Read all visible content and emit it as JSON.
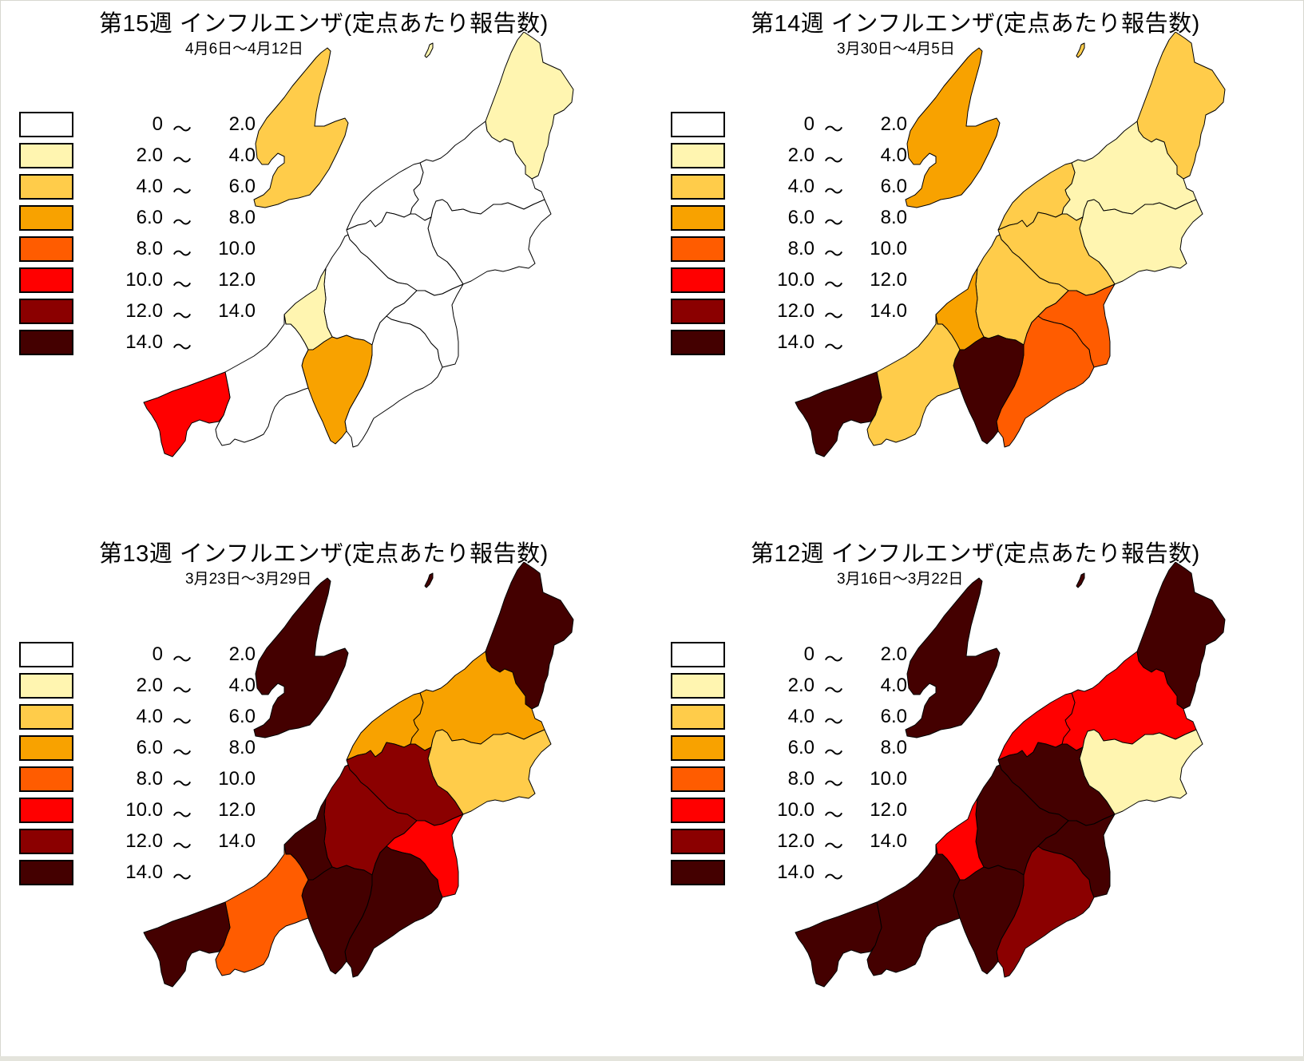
{
  "chart_data": [
    {
      "type": "choropleth-map",
      "title": "第15週 インフルエンザ(定点あたり報告数)",
      "subtitle": "4月6日～4月12日",
      "regions": {
        "sado": 4,
        "awashima": 2,
        "murakami": 2,
        "shibata": 0,
        "niigata": 0,
        "agano": 0,
        "sanjo": 0,
        "nagaoka": 0,
        "kashiwazaki": 2,
        "uonuma": 0,
        "minamiuonuma": 0,
        "tokamachi": 6,
        "joetsu": 0,
        "itoigawa": 10
      }
    },
    {
      "type": "choropleth-map",
      "title": "第14週 インフルエンザ(定点あたり報告数)",
      "subtitle": "3月30日～4月5日",
      "regions": {
        "sado": 6,
        "awashima": 4,
        "murakami": 4,
        "shibata": 2,
        "niigata": 4,
        "agano": 2,
        "sanjo": 4,
        "nagaoka": 4,
        "kashiwazaki": 6,
        "uonuma": 8,
        "minamiuonuma": 8,
        "tokamachi": 14,
        "joetsu": 4,
        "itoigawa": 14
      }
    },
    {
      "type": "choropleth-map",
      "title": "第13週 インフルエンザ(定点あたり報告数)",
      "subtitle": "3月23日～3月29日",
      "regions": {
        "sado": 14,
        "awashima": 14,
        "murakami": 14,
        "shibata": 6,
        "niigata": 6,
        "agano": 4,
        "sanjo": 12,
        "nagaoka": 12,
        "kashiwazaki": 14,
        "uonuma": 10,
        "minamiuonuma": 14,
        "tokamachi": 14,
        "joetsu": 8,
        "itoigawa": 14
      }
    },
    {
      "type": "choropleth-map",
      "title": "第12週 インフルエンザ(定点あたり報告数)",
      "subtitle": "3月16日～3月22日",
      "regions": {
        "sado": 14,
        "awashima": 14,
        "murakami": 14,
        "shibata": 10,
        "niigata": 10,
        "agano": 2,
        "sanjo": 14,
        "nagaoka": 14,
        "kashiwazaki": 10,
        "uonuma": 14,
        "minamiuonuma": 12,
        "tokamachi": 14,
        "joetsu": 14,
        "itoigawa": 14
      }
    }
  ],
  "legend": [
    {
      "lo": "0",
      "tilde": "～",
      "hi": "2.0",
      "color": "#ffffff",
      "min": 0
    },
    {
      "lo": "2.0",
      "tilde": "～",
      "hi": "4.0",
      "color": "#fff5b0",
      "min": 2
    },
    {
      "lo": "4.0",
      "tilde": "～",
      "hi": "6.0",
      "color": "#ffcc4a",
      "min": 4
    },
    {
      "lo": "6.0",
      "tilde": "～",
      "hi": "8.0",
      "color": "#f8a200",
      "min": 6
    },
    {
      "lo": "8.0",
      "tilde": "～",
      "hi": "10.0",
      "color": "#ff5c00",
      "min": 8
    },
    {
      "lo": "10.0",
      "tilde": "～",
      "hi": "12.0",
      "color": "#ff0000",
      "min": 10
    },
    {
      "lo": "12.0",
      "tilde": "～",
      "hi": "14.0",
      "color": "#8b0000",
      "min": 12
    },
    {
      "lo": "14.0",
      "tilde": "～",
      "hi": "",
      "color": "#440000",
      "min": 14
    }
  ],
  "panels": [
    {
      "title": "第15週 インフルエンザ(定点あたり報告数)",
      "subtitle": "4月6日～4月12日"
    },
    {
      "title": "第14週 インフルエンザ(定点あたり報告数)",
      "subtitle": "3月30日～4月5日"
    },
    {
      "title": "第13週 インフルエンザ(定点あたり報告数)",
      "subtitle": "3月23日～3月29日"
    },
    {
      "title": "第12週 インフルエンザ(定点あたり報告数)",
      "subtitle": "3月16日～3月22日"
    }
  ]
}
